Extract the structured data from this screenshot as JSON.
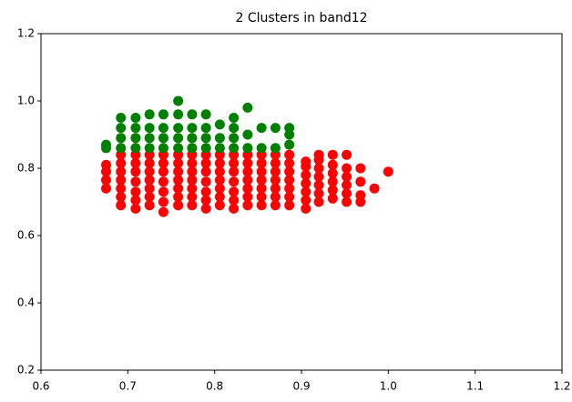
{
  "chart_data": {
    "type": "scatter",
    "title": "2 Clusters in band12",
    "xlim": [
      0.6,
      1.2
    ],
    "ylim": [
      0.2,
      1.2
    ],
    "xticks": [
      0.6,
      0.7,
      0.8,
      0.9,
      {
        "value": 1,
        "label": "1.0"
      },
      1.1,
      1.2
    ],
    "yticks": [
      0.2,
      0.4,
      0.6,
      0.8,
      {
        "value": 1,
        "label": "1.0"
      },
      1.2
    ],
    "series": [
      {
        "color": "#ff0000",
        "x": [
          0.675,
          0.675,
          0.675,
          0.675,
          0.692,
          0.692,
          0.692,
          0.692,
          0.692,
          0.692,
          0.692,
          0.709,
          0.709,
          0.709,
          0.709,
          0.709,
          0.709,
          0.709,
          0.725,
          0.725,
          0.725,
          0.725,
          0.725,
          0.725,
          0.725,
          0.741,
          0.741,
          0.741,
          0.741,
          0.741,
          0.741,
          0.741,
          0.758,
          0.758,
          0.758,
          0.758,
          0.758,
          0.758,
          0.758,
          0.774,
          0.774,
          0.774,
          0.774,
          0.774,
          0.774,
          0.774,
          0.79,
          0.79,
          0.79,
          0.79,
          0.79,
          0.79,
          0.79,
          0.806,
          0.806,
          0.806,
          0.806,
          0.806,
          0.806,
          0.806,
          0.822,
          0.822,
          0.822,
          0.822,
          0.822,
          0.822,
          0.822,
          0.838,
          0.838,
          0.838,
          0.838,
          0.838,
          0.838,
          0.838,
          0.854,
          0.854,
          0.854,
          0.854,
          0.854,
          0.854,
          0.854,
          0.87,
          0.87,
          0.87,
          0.87,
          0.87,
          0.87,
          0.87,
          0.886,
          0.886,
          0.886,
          0.886,
          0.886,
          0.886,
          0.886,
          0.905,
          0.905,
          0.905,
          0.905,
          0.905,
          0.905,
          0.905,
          0.92,
          0.92,
          0.92,
          0.92,
          0.92,
          0.92,
          0.92,
          0.936,
          0.936,
          0.936,
          0.936,
          0.936,
          0.936,
          0.952,
          0.952,
          0.952,
          0.952,
          0.952,
          0.952,
          0.968,
          0.968,
          0.968,
          0.968,
          0.984,
          1.0
        ],
        "y": [
          0.74,
          0.765,
          0.79,
          0.81,
          0.69,
          0.715,
          0.74,
          0.765,
          0.79,
          0.815,
          0.84,
          0.68,
          0.705,
          0.73,
          0.76,
          0.79,
          0.815,
          0.84,
          0.69,
          0.715,
          0.74,
          0.765,
          0.79,
          0.815,
          0.84,
          0.67,
          0.7,
          0.73,
          0.76,
          0.79,
          0.815,
          0.84,
          0.69,
          0.715,
          0.74,
          0.765,
          0.79,
          0.815,
          0.84,
          0.69,
          0.715,
          0.74,
          0.765,
          0.79,
          0.815,
          0.84,
          0.68,
          0.705,
          0.73,
          0.76,
          0.79,
          0.815,
          0.84,
          0.69,
          0.715,
          0.74,
          0.765,
          0.79,
          0.815,
          0.84,
          0.68,
          0.705,
          0.73,
          0.76,
          0.79,
          0.815,
          0.84,
          0.69,
          0.715,
          0.74,
          0.765,
          0.79,
          0.815,
          0.84,
          0.69,
          0.715,
          0.74,
          0.765,
          0.79,
          0.815,
          0.84,
          0.69,
          0.715,
          0.74,
          0.765,
          0.79,
          0.815,
          0.84,
          0.69,
          0.715,
          0.74,
          0.765,
          0.79,
          0.815,
          0.84,
          0.68,
          0.705,
          0.73,
          0.755,
          0.78,
          0.805,
          0.82,
          0.7,
          0.725,
          0.75,
          0.775,
          0.8,
          0.825,
          0.84,
          0.71,
          0.735,
          0.76,
          0.785,
          0.81,
          0.84,
          0.7,
          0.725,
          0.75,
          0.775,
          0.8,
          0.84,
          0.7,
          0.72,
          0.76,
          0.8,
          0.74,
          0.79
        ]
      },
      {
        "color": "#008000",
        "x": [
          0.675,
          0.675,
          0.692,
          0.692,
          0.692,
          0.692,
          0.709,
          0.709,
          0.709,
          0.709,
          0.725,
          0.725,
          0.725,
          0.725,
          0.741,
          0.741,
          0.741,
          0.741,
          0.758,
          0.758,
          0.758,
          0.758,
          0.758,
          0.774,
          0.774,
          0.774,
          0.774,
          0.79,
          0.79,
          0.79,
          0.79,
          0.806,
          0.806,
          0.806,
          0.822,
          0.822,
          0.822,
          0.822,
          0.838,
          0.838,
          0.838,
          0.854,
          0.854,
          0.87,
          0.87,
          0.886,
          0.886,
          0.886
        ],
        "y": [
          0.86,
          0.87,
          0.86,
          0.89,
          0.92,
          0.95,
          0.86,
          0.89,
          0.92,
          0.95,
          0.86,
          0.89,
          0.92,
          0.96,
          0.86,
          0.89,
          0.92,
          0.96,
          0.86,
          0.89,
          0.92,
          0.96,
          1.0,
          0.86,
          0.89,
          0.92,
          0.96,
          0.86,
          0.89,
          0.92,
          0.96,
          0.86,
          0.89,
          0.93,
          0.86,
          0.89,
          0.92,
          0.95,
          0.86,
          0.9,
          0.98,
          0.86,
          0.92,
          0.86,
          0.92,
          0.87,
          0.9,
          0.92
        ]
      }
    ]
  }
}
